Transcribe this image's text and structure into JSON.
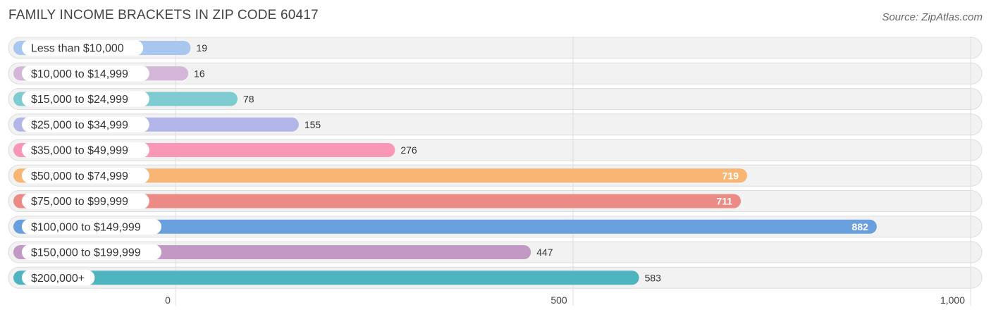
{
  "title": "FAMILY INCOME BRACKETS IN ZIP CODE 60417",
  "source": "Source: ZipAtlas.com",
  "chart_data": {
    "type": "bar",
    "orientation": "horizontal",
    "title": "FAMILY INCOME BRACKETS IN ZIP CODE 60417",
    "xlabel": "",
    "ylabel": "",
    "xlim": [
      0,
      1000
    ],
    "ticks": [
      {
        "value": 0,
        "label": "0"
      },
      {
        "value": 500,
        "label": "500"
      },
      {
        "value": 1000,
        "label": "1,000"
      }
    ],
    "categories": [
      "Less than $10,000",
      "$10,000 to $14,999",
      "$15,000 to $24,999",
      "$25,000 to $34,999",
      "$35,000 to $49,999",
      "$50,000 to $74,999",
      "$75,000 to $99,999",
      "$100,000 to $149,999",
      "$150,000 to $199,999",
      "$200,000+"
    ],
    "values": [
      19,
      16,
      78,
      155,
      276,
      719,
      711,
      882,
      447,
      583
    ],
    "colors": [
      "#a9c6ee",
      "#d3b6d8",
      "#7ecbd1",
      "#b1b5e8",
      "#f898b6",
      "#f8b574",
      "#ec8a85",
      "#6a9fde",
      "#c298c5",
      "#4db4c0"
    ]
  }
}
